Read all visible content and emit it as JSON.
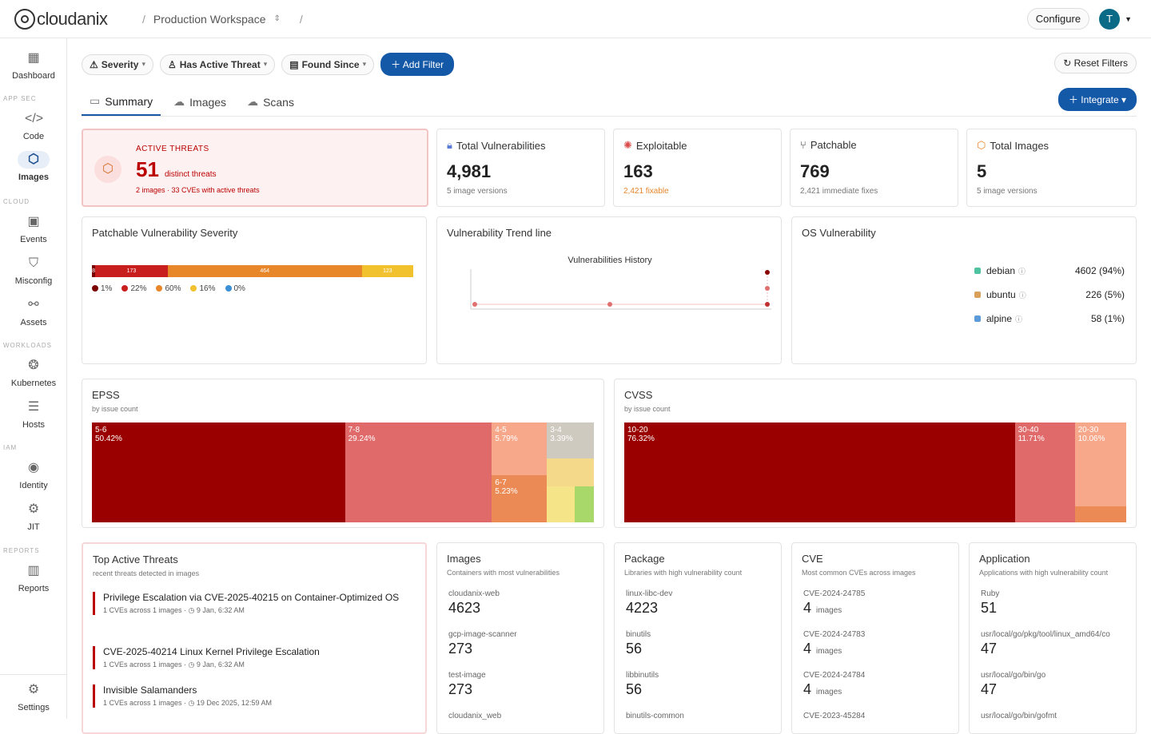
{
  "header": {
    "logo": "cloudanix",
    "workspace": "Production Workspace",
    "sep": "/",
    "configure": "Configure",
    "avatar": "T"
  },
  "sidebar": {
    "dashboard": "Dashboard",
    "sec_appsec": "APP SEC",
    "code": "Code",
    "images": "Images",
    "sec_cloud": "CLOUD",
    "events": "Events",
    "misconfig": "Misconfig",
    "assets": "Assets",
    "sec_workloads": "WORKLOADS",
    "kubernetes": "Kubernetes",
    "hosts": "Hosts",
    "sec_iam": "IAM",
    "identity": "Identity",
    "jit": "JIT",
    "sec_reports": "REPORTS",
    "reports": "Reports",
    "settings": "Settings"
  },
  "filters": {
    "severity": "Severity",
    "active_threat": "Has Active Threat",
    "found_since": "Found Since",
    "add_filter": "Add Filter",
    "reset": "Reset Filters"
  },
  "tabs": {
    "summary": "Summary",
    "images": "Images",
    "scans": "Scans",
    "integrate": "Integrate"
  },
  "kpis": {
    "active": {
      "label": "ACTIVE THREATS",
      "value": "51",
      "unit": "distinct threats",
      "sub": "2 images · 33 CVEs with active threats"
    },
    "total": {
      "label": "Total Vulnerabilities",
      "value": "4,981",
      "sub": "5 image versions"
    },
    "exploitable": {
      "label": "Exploitable",
      "value": "163",
      "sub": "2,421 fixable"
    },
    "patchable": {
      "label": "Patchable",
      "value": "769",
      "sub": "2,421 immediate fixes"
    },
    "images": {
      "label": "Total Images",
      "value": "5",
      "sub": "5 image versions"
    }
  },
  "colors": {
    "critical": "#7a0000",
    "high": "#c81e1e",
    "medium": "#e8862a",
    "low": "#f2c12e",
    "info": "#3b8fd6"
  },
  "patchable_chart": {
    "title": "Patchable Vulnerability Severity",
    "bar": [
      {
        "label": "8",
        "value": 8
      },
      {
        "label": "173",
        "value": 173
      },
      {
        "label": "464",
        "value": 464
      },
      {
        "label": "123",
        "value": 123
      }
    ],
    "legend": [
      "1%",
      "22%",
      "60%",
      "16%",
      "0%"
    ]
  },
  "trend": {
    "title": "Vulnerability Trend line",
    "chart_title": "Vulnerabilities History"
  },
  "os": {
    "title": "OS Vulnerability",
    "items": [
      {
        "name": "debian",
        "value": "4602 (94%)",
        "color": "#4fc3a1"
      },
      {
        "name": "ubuntu",
        "value": "226 (5%)",
        "color": "#d9a05b"
      },
      {
        "name": "alpine",
        "value": "58 (1%)",
        "color": "#5b9bd9"
      }
    ]
  },
  "epss": {
    "title": "EPSS",
    "sub": "by issue count"
  },
  "cvss": {
    "title": "CVSS",
    "sub": "by issue count"
  },
  "chart_data": [
    {
      "type": "heatmap",
      "title": "EPSS",
      "subtitle": "by issue count",
      "cells": [
        {
          "label": "5-6",
          "pct": "50.42%",
          "value": 50.42
        },
        {
          "label": "7-8",
          "pct": "29.24%",
          "value": 29.24
        },
        {
          "label": "4-5",
          "pct": "5.79%",
          "value": 5.79
        },
        {
          "label": "6-7",
          "pct": "5.23%",
          "value": 5.23
        },
        {
          "label": "3-4",
          "pct": "3.39%",
          "value": 3.39
        }
      ]
    },
    {
      "type": "heatmap",
      "title": "CVSS",
      "subtitle": "by issue count",
      "cells": [
        {
          "label": "10-20",
          "pct": "76.32%",
          "value": 76.32
        },
        {
          "label": "30-40",
          "pct": "11.71%",
          "value": 11.71
        },
        {
          "label": "20-30",
          "pct": "10.06%",
          "value": 10.06
        }
      ]
    }
  ],
  "threats": {
    "title": "Top Active Threats",
    "sub": "recent threats detected in images",
    "items": [
      {
        "title": "Privilege Escalation via CVE-2025-40215 on Container-Optimized OS",
        "meta": "1 CVEs across 1 images · ◷ 9 Jan, 6:32 AM"
      },
      {
        "title": "CVE-2025-40214 Linux Kernel Privilege Escalation",
        "meta": "1 CVEs across 1 images · ◷ 9 Jan, 6:32 AM"
      },
      {
        "title": "Invisible Salamanders",
        "meta": "1 CVEs across 1 images · ◷ 19 Dec 2025, 12:59 AM"
      }
    ]
  },
  "lists": {
    "images": {
      "title": "Images",
      "sub": "Containers with most vulnerabilities",
      "items": [
        {
          "k": "cloudanix-web",
          "v": "4623"
        },
        {
          "k": "gcp-image-scanner",
          "v": "273"
        },
        {
          "k": "test-image",
          "v": "273"
        },
        {
          "k": "cloudanix_web",
          "v": ""
        }
      ]
    },
    "package": {
      "title": "Package",
      "sub": "Libraries with high vulnerability count",
      "items": [
        {
          "k": "linux-libc-dev",
          "v": "4223"
        },
        {
          "k": "binutils",
          "v": "56"
        },
        {
          "k": "libbinutils",
          "v": "56"
        },
        {
          "k": "binutils-common",
          "v": ""
        }
      ]
    },
    "cve": {
      "title": "CVE",
      "sub": "Most common CVEs across images",
      "items": [
        {
          "k": "CVE-2024-24785",
          "v": "4",
          "u": "images"
        },
        {
          "k": "CVE-2024-24783",
          "v": "4",
          "u": "images"
        },
        {
          "k": "CVE-2024-24784",
          "v": "4",
          "u": "images"
        },
        {
          "k": "CVE-2023-45284",
          "v": "",
          "u": ""
        }
      ]
    },
    "application": {
      "title": "Application",
      "sub": "Applications with high vulnerability count",
      "items": [
        {
          "k": "Ruby",
          "v": "51"
        },
        {
          "k": "usr/local/go/pkg/tool/linux_amd64/co",
          "v": "47"
        },
        {
          "k": "usr/local/go/bin/go",
          "v": "47"
        },
        {
          "k": "usr/local/go/bin/gofmt",
          "v": ""
        }
      ]
    }
  }
}
